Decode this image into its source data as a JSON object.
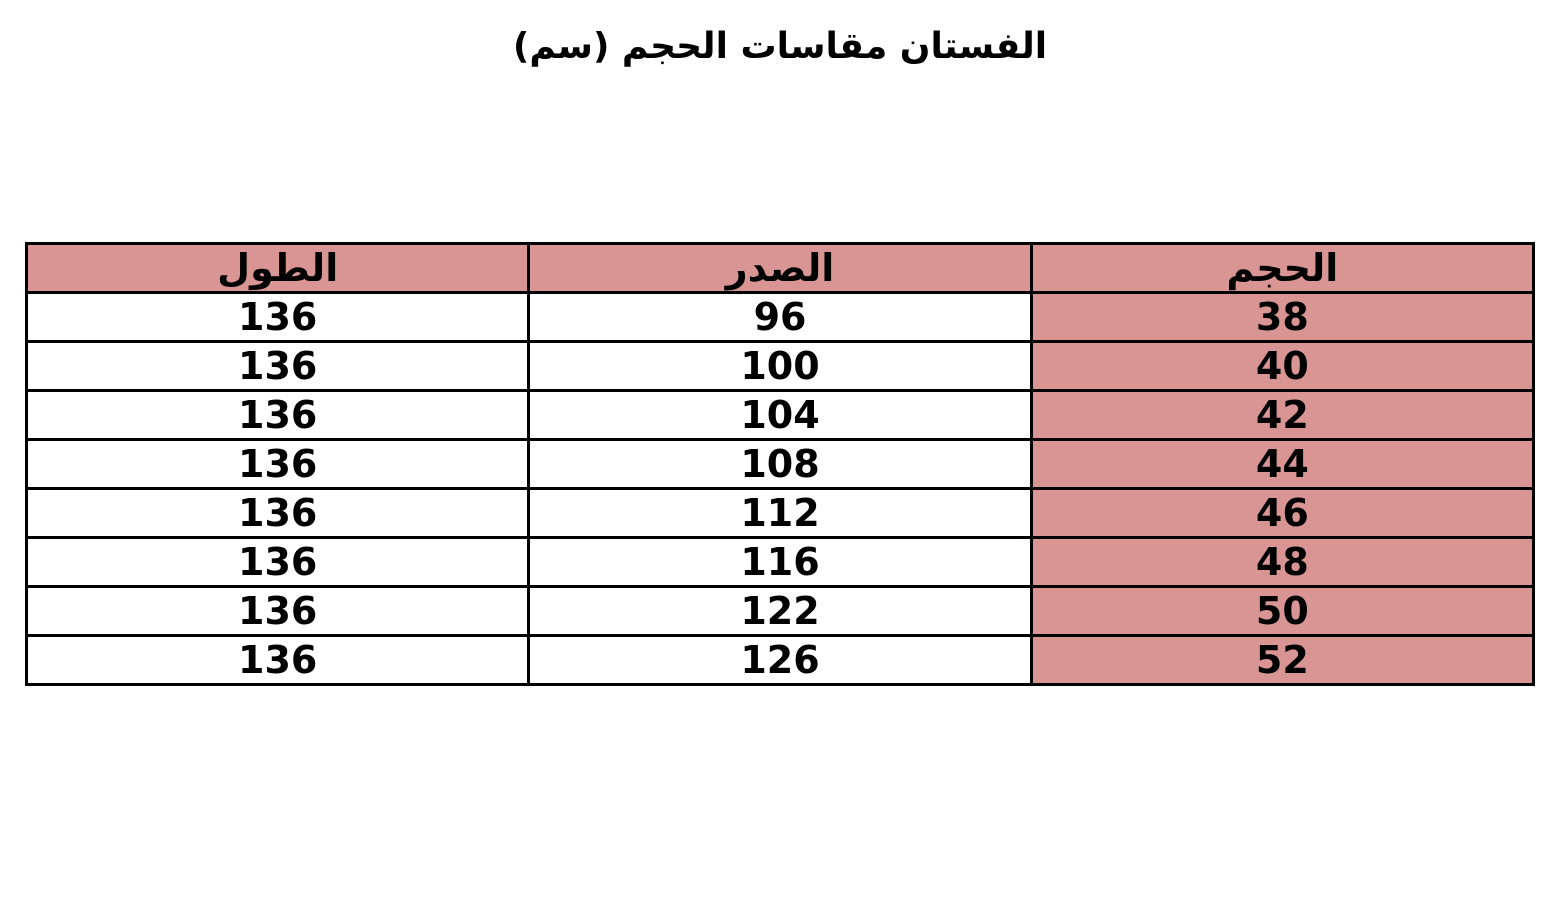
{
  "title": "الفستان مقاسات الحجم (سم)",
  "colors": {
    "accent": "#d99594",
    "border": "#000000"
  },
  "table": {
    "headers": [
      "الحجم",
      "الصدر",
      "الطول"
    ],
    "rows": [
      [
        "38",
        "96",
        "136"
      ],
      [
        "40",
        "100",
        "136"
      ],
      [
        "42",
        "104",
        "136"
      ],
      [
        "44",
        "108",
        "136"
      ],
      [
        "46",
        "112",
        "136"
      ],
      [
        "48",
        "116",
        "136"
      ],
      [
        "50",
        "122",
        "136"
      ],
      [
        "52",
        "126",
        "136"
      ]
    ]
  }
}
